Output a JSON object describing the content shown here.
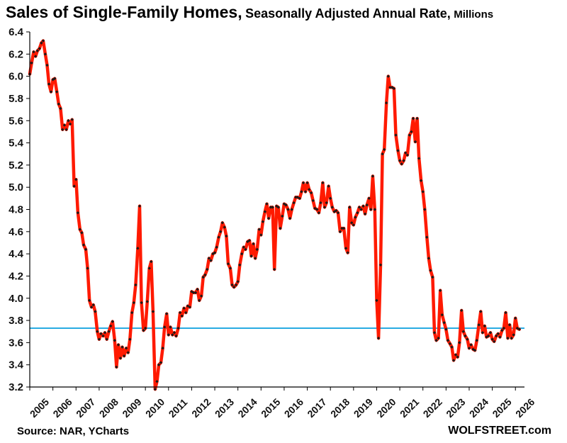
{
  "title": {
    "main": "Sales of Single-Family Homes,",
    "sub": "Seasonally Adjusted Annual Rate,",
    "unit": "Millions"
  },
  "source": "Source: NAR, YCharts",
  "brand": "WOLFSTREET.com",
  "colors": {
    "line": "#ff1a00",
    "marker": "#1a1a1a",
    "reference": "#29abe2",
    "axis": "#000000"
  },
  "chart_data": {
    "type": "line",
    "title": "Sales of Single-Family Homes, Seasonally Adjusted Annual Rate, Millions",
    "xlabel": "",
    "ylabel": "",
    "ylim": [
      3.2,
      6.4
    ],
    "xlim": [
      2005.0,
      2026.33
    ],
    "grid": false,
    "y_ticks": [
      "3.2",
      "3.4",
      "3.6",
      "3.8",
      "4.0",
      "4.2",
      "4.4",
      "4.6",
      "4.8",
      "5.0",
      "5.2",
      "5.4",
      "5.6",
      "5.8",
      "6.0",
      "6.2",
      "6.4"
    ],
    "x_ticks": [
      "2005",
      "2006",
      "2007",
      "2008",
      "2009",
      "2010",
      "2011",
      "2012",
      "2013",
      "2014",
      "2015",
      "2016",
      "2017",
      "2018",
      "2019",
      "2020",
      "2021",
      "2022",
      "2023",
      "2024",
      "2025",
      "2026"
    ],
    "reference_line": {
      "y": 3.73
    },
    "series": [
      {
        "points": [
          [
            2005.0,
            6.02
          ],
          [
            2005.08,
            6.12
          ],
          [
            2005.17,
            6.22
          ],
          [
            2005.25,
            6.18
          ],
          [
            2005.33,
            6.23
          ],
          [
            2005.42,
            6.25
          ],
          [
            2005.5,
            6.3
          ],
          [
            2005.58,
            6.32
          ],
          [
            2005.67,
            6.2
          ],
          [
            2005.75,
            6.1
          ],
          [
            2005.83,
            5.93
          ],
          [
            2005.92,
            5.86
          ],
          [
            2006.0,
            5.97
          ],
          [
            2006.08,
            5.98
          ],
          [
            2006.17,
            5.86
          ],
          [
            2006.25,
            5.75
          ],
          [
            2006.33,
            5.71
          ],
          [
            2006.42,
            5.52
          ],
          [
            2006.5,
            5.56
          ],
          [
            2006.58,
            5.52
          ],
          [
            2006.67,
            5.6
          ],
          [
            2006.75,
            5.57
          ],
          [
            2006.83,
            5.61
          ],
          [
            2006.92,
            5.01
          ],
          [
            2007.0,
            5.07
          ],
          [
            2007.08,
            4.77
          ],
          [
            2007.17,
            4.62
          ],
          [
            2007.25,
            4.59
          ],
          [
            2007.33,
            4.48
          ],
          [
            2007.42,
            4.44
          ],
          [
            2007.5,
            4.27
          ],
          [
            2007.58,
            3.98
          ],
          [
            2007.67,
            3.92
          ],
          [
            2007.75,
            3.94
          ],
          [
            2007.83,
            3.88
          ],
          [
            2007.92,
            3.7
          ],
          [
            2008.0,
            3.63
          ],
          [
            2008.08,
            3.68
          ],
          [
            2008.17,
            3.66
          ],
          [
            2008.25,
            3.69
          ],
          [
            2008.33,
            3.63
          ],
          [
            2008.42,
            3.7
          ],
          [
            2008.5,
            3.75
          ],
          [
            2008.58,
            3.79
          ],
          [
            2008.67,
            3.62
          ],
          [
            2008.75,
            3.38
          ],
          [
            2008.83,
            3.58
          ],
          [
            2008.92,
            3.46
          ],
          [
            2009.0,
            3.56
          ],
          [
            2009.08,
            3.48
          ],
          [
            2009.17,
            3.55
          ],
          [
            2009.25,
            3.51
          ],
          [
            2009.33,
            3.63
          ],
          [
            2009.42,
            3.87
          ],
          [
            2009.5,
            3.96
          ],
          [
            2009.58,
            4.12
          ],
          [
            2009.67,
            4.45
          ],
          [
            2009.75,
            4.83
          ],
          [
            2009.83,
            3.96
          ],
          [
            2009.92,
            3.71
          ],
          [
            2010.0,
            3.73
          ],
          [
            2010.08,
            3.97
          ],
          [
            2010.17,
            4.27
          ],
          [
            2010.25,
            4.33
          ],
          [
            2010.33,
            3.88
          ],
          [
            2010.42,
            3.18
          ],
          [
            2010.5,
            3.25
          ],
          [
            2010.58,
            3.4
          ],
          [
            2010.67,
            3.42
          ],
          [
            2010.75,
            3.55
          ],
          [
            2010.83,
            3.74
          ],
          [
            2010.92,
            3.86
          ],
          [
            2011.0,
            3.67
          ],
          [
            2011.08,
            3.74
          ],
          [
            2011.17,
            3.67
          ],
          [
            2011.25,
            3.69
          ],
          [
            2011.33,
            3.66
          ],
          [
            2011.42,
            3.73
          ],
          [
            2011.5,
            3.87
          ],
          [
            2011.58,
            3.84
          ],
          [
            2011.67,
            3.91
          ],
          [
            2011.75,
            3.87
          ],
          [
            2011.83,
            3.93
          ],
          [
            2011.92,
            3.92
          ],
          [
            2012.0,
            4.06
          ],
          [
            2012.08,
            4.05
          ],
          [
            2012.17,
            4.05
          ],
          [
            2012.25,
            4.08
          ],
          [
            2012.33,
            3.98
          ],
          [
            2012.42,
            4.02
          ],
          [
            2012.5,
            4.19
          ],
          [
            2012.58,
            4.21
          ],
          [
            2012.67,
            4.26
          ],
          [
            2012.75,
            4.36
          ],
          [
            2012.83,
            4.34
          ],
          [
            2012.92,
            4.4
          ],
          [
            2013.0,
            4.41
          ],
          [
            2013.08,
            4.46
          ],
          [
            2013.17,
            4.55
          ],
          [
            2013.25,
            4.6
          ],
          [
            2013.33,
            4.68
          ],
          [
            2013.42,
            4.64
          ],
          [
            2013.5,
            4.56
          ],
          [
            2013.58,
            4.31
          ],
          [
            2013.67,
            4.27
          ],
          [
            2013.75,
            4.12
          ],
          [
            2013.83,
            4.1
          ],
          [
            2013.92,
            4.12
          ],
          [
            2014.0,
            4.15
          ],
          [
            2014.08,
            4.3
          ],
          [
            2014.17,
            4.4
          ],
          [
            2014.25,
            4.46
          ],
          [
            2014.33,
            4.44
          ],
          [
            2014.42,
            4.51
          ],
          [
            2014.5,
            4.52
          ],
          [
            2014.58,
            4.38
          ],
          [
            2014.67,
            4.49
          ],
          [
            2014.75,
            4.36
          ],
          [
            2014.83,
            4.44
          ],
          [
            2014.92,
            4.62
          ],
          [
            2015.0,
            4.57
          ],
          [
            2015.08,
            4.69
          ],
          [
            2015.17,
            4.78
          ],
          [
            2015.25,
            4.85
          ],
          [
            2015.33,
            4.72
          ],
          [
            2015.42,
            4.82
          ],
          [
            2015.5,
            4.82
          ],
          [
            2015.58,
            4.26
          ],
          [
            2015.67,
            4.83
          ],
          [
            2015.75,
            4.82
          ],
          [
            2015.83,
            4.63
          ],
          [
            2015.92,
            4.74
          ],
          [
            2016.0,
            4.85
          ],
          [
            2016.08,
            4.84
          ],
          [
            2016.17,
            4.8
          ],
          [
            2016.25,
            4.72
          ],
          [
            2016.33,
            4.8
          ],
          [
            2016.42,
            4.86
          ],
          [
            2016.5,
            4.91
          ],
          [
            2016.58,
            4.91
          ],
          [
            2016.67,
            4.9
          ],
          [
            2016.75,
            4.96
          ],
          [
            2016.83,
            5.04
          ],
          [
            2016.92,
            4.96
          ],
          [
            2017.0,
            5.04
          ],
          [
            2017.08,
            4.98
          ],
          [
            2017.17,
            4.95
          ],
          [
            2017.25,
            4.88
          ],
          [
            2017.33,
            4.81
          ],
          [
            2017.42,
            4.8
          ],
          [
            2017.5,
            4.77
          ],
          [
            2017.58,
            4.86
          ],
          [
            2017.67,
            5.04
          ],
          [
            2017.75,
            4.82
          ],
          [
            2017.83,
            4.86
          ],
          [
            2017.92,
            5.01
          ],
          [
            2018.0,
            4.9
          ],
          [
            2018.08,
            4.82
          ],
          [
            2018.17,
            4.78
          ],
          [
            2018.25,
            4.79
          ],
          [
            2018.33,
            4.77
          ],
          [
            2018.42,
            4.6
          ],
          [
            2018.5,
            4.63
          ],
          [
            2018.58,
            4.63
          ],
          [
            2018.67,
            4.45
          ],
          [
            2018.75,
            4.41
          ],
          [
            2018.83,
            4.82
          ],
          [
            2018.92,
            4.68
          ],
          [
            2019.0,
            4.66
          ],
          [
            2019.08,
            4.73
          ],
          [
            2019.17,
            4.77
          ],
          [
            2019.25,
            4.82
          ],
          [
            2019.33,
            4.8
          ],
          [
            2019.42,
            4.83
          ],
          [
            2019.5,
            4.76
          ],
          [
            2019.58,
            4.84
          ],
          [
            2019.67,
            4.9
          ],
          [
            2019.75,
            4.8
          ],
          [
            2019.83,
            5.1
          ],
          [
            2019.92,
            4.8
          ],
          [
            2020.0,
            3.98
          ],
          [
            2020.08,
            3.64
          ],
          [
            2020.17,
            4.3
          ],
          [
            2020.25,
            5.3
          ],
          [
            2020.33,
            5.34
          ],
          [
            2020.42,
            5.76
          ],
          [
            2020.5,
            6.0
          ],
          [
            2020.58,
            5.9
          ],
          [
            2020.67,
            5.9
          ],
          [
            2020.75,
            5.89
          ],
          [
            2020.83,
            5.47
          ],
          [
            2020.92,
            5.33
          ],
          [
            2021.0,
            5.24
          ],
          [
            2021.08,
            5.21
          ],
          [
            2021.17,
            5.24
          ],
          [
            2021.25,
            5.31
          ],
          [
            2021.33,
            5.29
          ],
          [
            2021.42,
            5.47
          ],
          [
            2021.5,
            5.5
          ],
          [
            2021.58,
            5.62
          ],
          [
            2021.67,
            5.41
          ],
          [
            2021.75,
            5.62
          ],
          [
            2021.83,
            5.26
          ],
          [
            2021.92,
            5.06
          ],
          [
            2022.0,
            4.96
          ],
          [
            2022.08,
            4.8
          ],
          [
            2022.17,
            4.55
          ],
          [
            2022.25,
            4.36
          ],
          [
            2022.33,
            4.25
          ],
          [
            2022.42,
            4.19
          ],
          [
            2022.5,
            3.69
          ],
          [
            2022.58,
            3.62
          ],
          [
            2022.67,
            3.64
          ],
          [
            2022.75,
            4.07
          ],
          [
            2022.83,
            3.85
          ],
          [
            2022.92,
            3.78
          ],
          [
            2023.0,
            3.72
          ],
          [
            2023.08,
            3.62
          ],
          [
            2023.17,
            3.59
          ],
          [
            2023.25,
            3.56
          ],
          [
            2023.33,
            3.44
          ],
          [
            2023.42,
            3.49
          ],
          [
            2023.5,
            3.47
          ],
          [
            2023.58,
            3.6
          ],
          [
            2023.67,
            3.89
          ],
          [
            2023.75,
            3.7
          ],
          [
            2023.83,
            3.66
          ],
          [
            2023.92,
            3.63
          ],
          [
            2024.0,
            3.55
          ],
          [
            2024.08,
            3.58
          ],
          [
            2024.17,
            3.54
          ],
          [
            2024.25,
            3.53
          ],
          [
            2024.33,
            3.62
          ],
          [
            2024.42,
            3.76
          ],
          [
            2024.5,
            3.88
          ],
          [
            2024.58,
            3.69
          ],
          [
            2024.67,
            3.75
          ],
          [
            2024.75,
            3.65
          ],
          [
            2024.83,
            3.66
          ],
          [
            2024.92,
            3.69
          ],
          [
            2025.0,
            3.63
          ],
          [
            2025.08,
            3.61
          ],
          [
            2025.17,
            3.66
          ],
          [
            2025.25,
            3.68
          ],
          [
            2025.33,
            3.65
          ],
          [
            2025.42,
            3.71
          ],
          [
            2025.5,
            3.73
          ],
          [
            2025.58,
            3.87
          ],
          [
            2025.67,
            3.64
          ],
          [
            2025.75,
            3.76
          ],
          [
            2025.83,
            3.64
          ],
          [
            2025.92,
            3.67
          ],
          [
            2026.0,
            3.82
          ],
          [
            2026.08,
            3.73
          ],
          [
            2026.17,
            3.72
          ]
        ]
      }
    ]
  }
}
